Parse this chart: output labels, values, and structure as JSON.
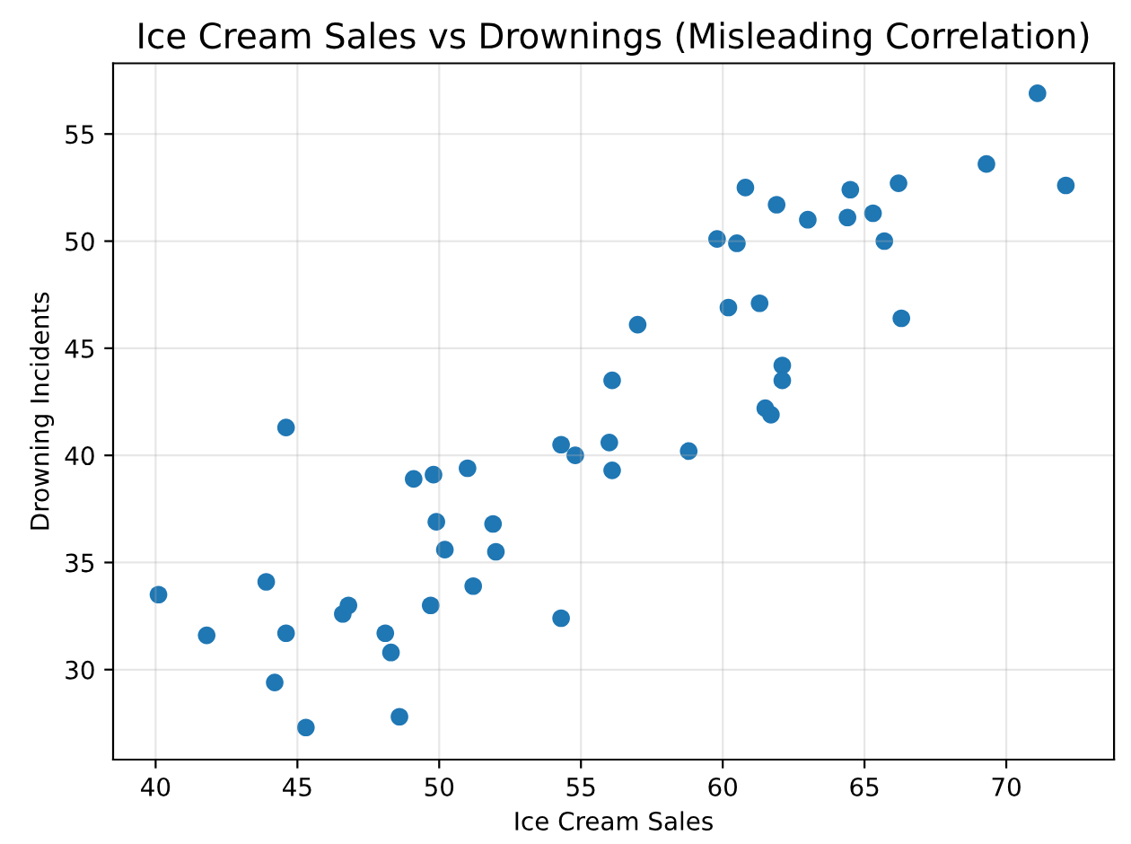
{
  "chart_data": {
    "type": "scatter",
    "title": "Ice Cream Sales vs Drownings (Misleading Correlation)",
    "xlabel": "Ice Cream Sales",
    "ylabel": "Drowning Incidents",
    "x": [
      40.1,
      41.8,
      43.9,
      44.2,
      44.6,
      44.6,
      45.3,
      46.6,
      46.8,
      48.1,
      48.3,
      48.6,
      49.1,
      49.7,
      49.8,
      49.9,
      50.2,
      51.0,
      51.2,
      51.9,
      52.0,
      54.3,
      54.3,
      54.8,
      56.0,
      56.1,
      56.1,
      57.0,
      58.8,
      59.8,
      60.2,
      60.5,
      60.8,
      61.3,
      61.5,
      61.7,
      61.9,
      62.1,
      62.1,
      63.0,
      64.4,
      64.5,
      65.3,
      65.7,
      66.2,
      66.3,
      69.3,
      71.1,
      72.1
    ],
    "series": [
      {
        "color": "#1f77b4",
        "values": [
          33.5,
          31.6,
          34.1,
          29.4,
          31.7,
          41.3,
          27.3,
          32.6,
          33.0,
          31.7,
          30.8,
          27.8,
          38.9,
          33.0,
          39.1,
          36.9,
          35.6,
          39.4,
          33.9,
          36.8,
          35.5,
          40.5,
          32.4,
          40.0,
          40.6,
          43.5,
          39.3,
          46.1,
          40.2,
          50.1,
          46.9,
          49.9,
          52.5,
          47.1,
          42.2,
          41.9,
          51.7,
          44.2,
          43.5,
          51.0,
          51.1,
          52.4,
          51.3,
          50.0,
          52.7,
          46.4,
          53.6,
          56.9,
          52.6
        ]
      }
    ],
    "xlim": [
      38.5,
      73.8
    ],
    "ylim": [
      25.8,
      58.3
    ],
    "xticks": [
      40,
      45,
      50,
      55,
      60,
      65,
      70
    ],
    "yticks": [
      30,
      35,
      40,
      45,
      50,
      55
    ],
    "grid": true,
    "marker": "circle",
    "legend": false
  }
}
